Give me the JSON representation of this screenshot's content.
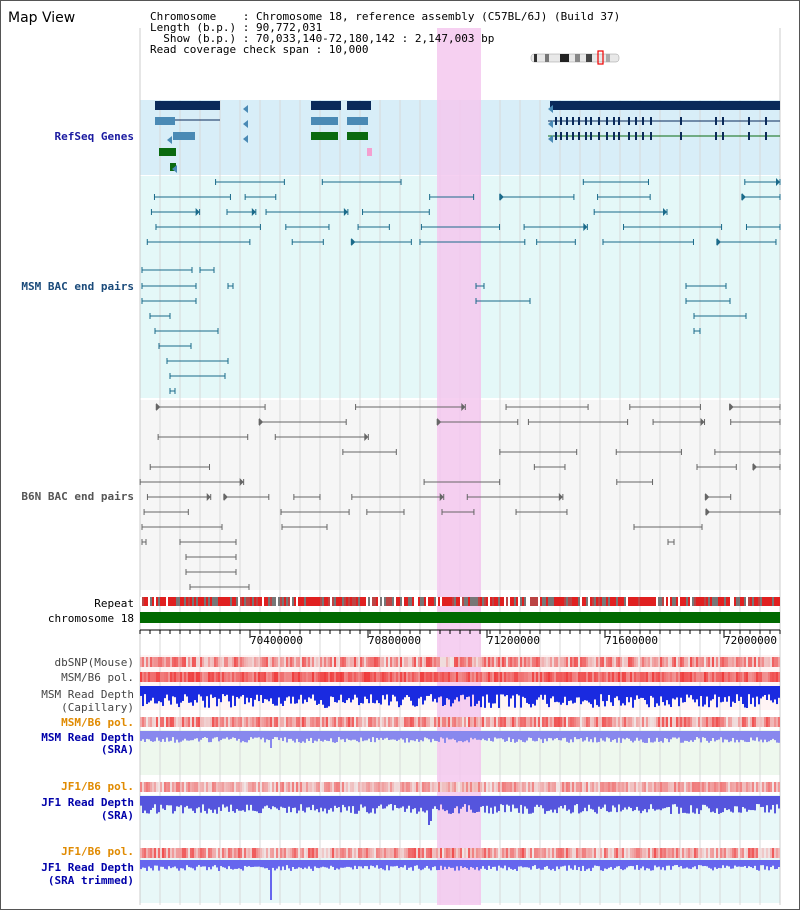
{
  "title": "Map View",
  "header": {
    "line1": "Chromosome    : Chromosome 18, reference assembly (C57BL/6J) (Build 37)",
    "line2": "Length (b.p.) : 90,772,031",
    "line3": "  Show (b.p.) : 70,033,140-72,180,142 : 2,147,003 bp",
    "line4": "Read coverage check span : 10,000"
  },
  "tracks": {
    "refseq": "RefSeq Genes",
    "msm_bac": "MSM BAC end pairs",
    "b6n_bac": "B6N BAC end pairs",
    "repeat": "Repeat",
    "chromosome": "chromosome 18",
    "dbsnp": "dbSNP(Mouse)",
    "msm_b6_pol": "MSM/B6 pol.",
    "msm_read_cap_1": "MSM Read Depth",
    "msm_read_cap_2": "(Capillary)",
    "msm_b6_pol2": "MSM/B6 pol.",
    "msm_read_sra_1": "MSM Read Depth",
    "msm_read_sra_2": "(SRA)",
    "jf1_b6_pol": "JF1/B6 pol.",
    "jf1_read_sra_1": "JF1 Read Depth",
    "jf1_read_sra_2": "(SRA)",
    "jf1_b6_pol2": "JF1/B6 pol.",
    "jf1_read_trim_1": "JF1 Read Depth",
    "jf1_read_trim_2": "(SRA trimmed)"
  },
  "axis": {
    "ticks": [
      "70400000",
      "70800000",
      "71200000",
      "71600000",
      "72000000"
    ]
  },
  "colors": {
    "refseq_label": "#1a1aa0",
    "msm_label": "#1a4a7a",
    "b6n_label": "#555555",
    "pol_orange": "#e08a00",
    "depth_blue": "#0000cc",
    "highlight": "#f5c8ee"
  }
}
